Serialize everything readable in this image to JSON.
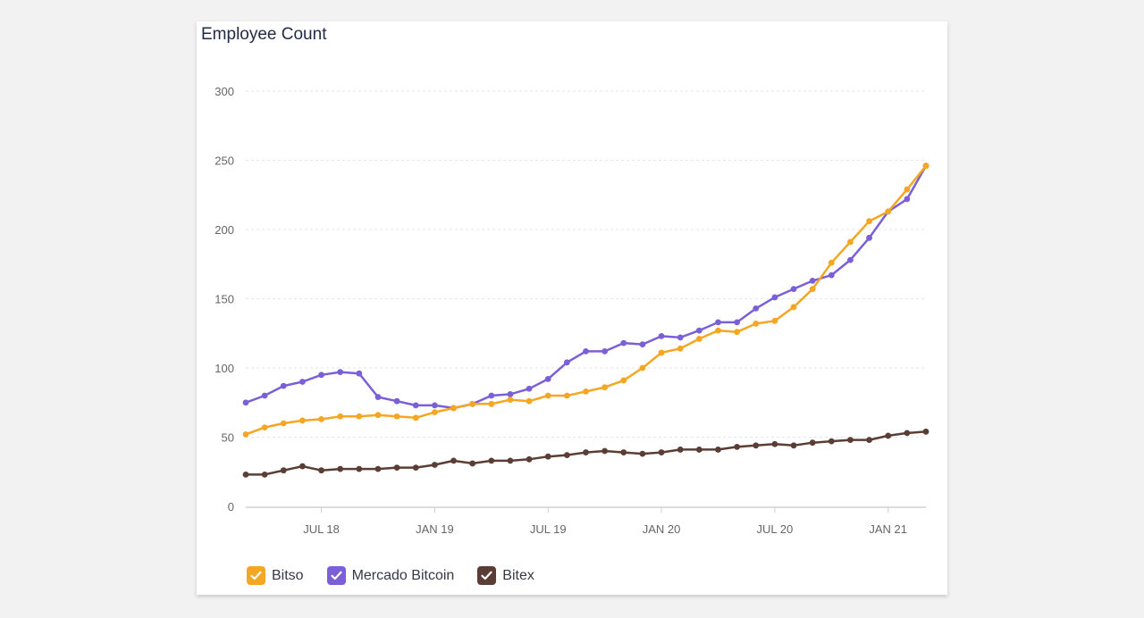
{
  "title": "Employee Count",
  "chart_data": {
    "type": "line",
    "x": [
      "2018-03",
      "2018-04",
      "2018-05",
      "2018-06",
      "2018-07",
      "2018-08",
      "2018-09",
      "2018-10",
      "2018-11",
      "2018-12",
      "2019-01",
      "2019-02",
      "2019-03",
      "2019-04",
      "2019-05",
      "2019-06",
      "2019-07",
      "2019-08",
      "2019-09",
      "2019-10",
      "2019-11",
      "2019-12",
      "2020-01",
      "2020-02",
      "2020-03",
      "2020-04",
      "2020-05",
      "2020-06",
      "2020-07",
      "2020-08",
      "2020-09",
      "2020-10",
      "2020-11",
      "2020-12",
      "2021-01",
      "2021-02",
      "2021-03"
    ],
    "xticks": [
      {
        "label": "JUL 18",
        "at": "2018-07"
      },
      {
        "label": "JAN 19",
        "at": "2019-01"
      },
      {
        "label": "JUL 19",
        "at": "2019-07"
      },
      {
        "label": "JAN 20",
        "at": "2020-01"
      },
      {
        "label": "JUL 20",
        "at": "2020-07"
      },
      {
        "label": "JAN 21",
        "at": "2021-01"
      }
    ],
    "yticks": [
      0,
      50,
      100,
      150,
      200,
      250,
      300
    ],
    "ylim": [
      0,
      300
    ],
    "grid": true,
    "legend_position": "bottom-left",
    "series": [
      {
        "name": "Bitso",
        "color": "#f5a623",
        "values": [
          52,
          57,
          60,
          62,
          63,
          65,
          65,
          66,
          65,
          64,
          68,
          71,
          74,
          74,
          77,
          76,
          80,
          80,
          83,
          86,
          91,
          100,
          111,
          114,
          121,
          127,
          126,
          132,
          134,
          144,
          157,
          176,
          191,
          206,
          213,
          229,
          246
        ]
      },
      {
        "name": "Mercado Bitcoin",
        "color": "#7b5fd6",
        "values": [
          75,
          80,
          87,
          90,
          95,
          97,
          96,
          79,
          76,
          73,
          73,
          71,
          74,
          80,
          81,
          85,
          92,
          104,
          112,
          112,
          118,
          117,
          123,
          122,
          127,
          133,
          133,
          143,
          151,
          157,
          163,
          167,
          178,
          194,
          213,
          222,
          246
        ]
      },
      {
        "name": "Bitex",
        "color": "#5a3e36",
        "values": [
          23,
          23,
          26,
          29,
          26,
          27,
          27,
          27,
          28,
          28,
          30,
          33,
          31,
          33,
          33,
          34,
          36,
          37,
          39,
          40,
          39,
          38,
          39,
          41,
          41,
          41,
          43,
          44,
          45,
          44,
          46,
          47,
          48,
          48,
          51,
          53,
          54
        ]
      }
    ]
  }
}
